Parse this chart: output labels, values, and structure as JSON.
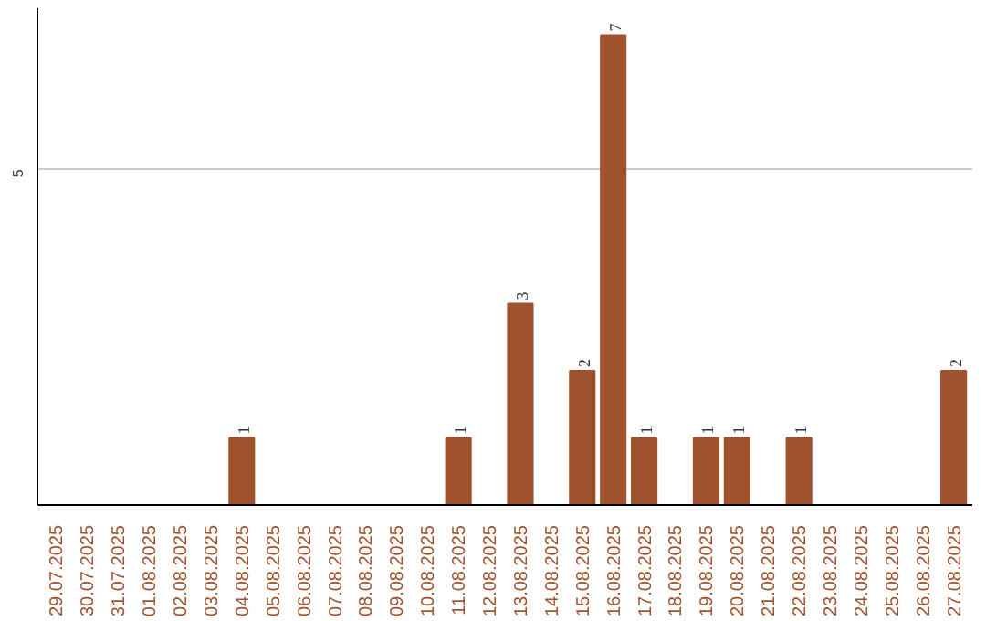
{
  "chart_data": {
    "type": "bar",
    "categories": [
      "29.07.2025",
      "30.07.2025",
      "31.07.2025",
      "01.08.2025",
      "02.08.2025",
      "03.08.2025",
      "04.08.2025",
      "05.08.2025",
      "06.08.2025",
      "07.08.2025",
      "08.08.2025",
      "09.08.2025",
      "10.08.2025",
      "11.08.2025",
      "12.08.2025",
      "13.08.2025",
      "14.08.2025",
      "15.08.2025",
      "16.08.2025",
      "17.08.2025",
      "18.08.2025",
      "19.08.2025",
      "20.08.2025",
      "21.08.2025",
      "22.08.2025",
      "23.08.2025",
      "24.08.2025",
      "25.08.2025",
      "26.08.2025",
      "27.08.2025"
    ],
    "values": [
      0,
      0,
      0,
      0,
      0,
      0,
      1,
      0,
      0,
      0,
      0,
      0,
      0,
      1,
      0,
      3,
      0,
      2,
      7,
      1,
      0,
      1,
      1,
      0,
      1,
      0,
      0,
      0,
      0,
      2
    ],
    "value_labels": [
      null,
      null,
      null,
      null,
      null,
      null,
      "1",
      null,
      null,
      null,
      null,
      null,
      null,
      "1",
      null,
      "3",
      null,
      "2",
      "7",
      "1",
      null,
      "1",
      "1",
      null,
      "1",
      null,
      null,
      null,
      null,
      "2"
    ],
    "color": "#a0522d",
    "ylim": [
      0,
      7.4
    ],
    "yticks": [
      5
    ],
    "grid": "y"
  }
}
